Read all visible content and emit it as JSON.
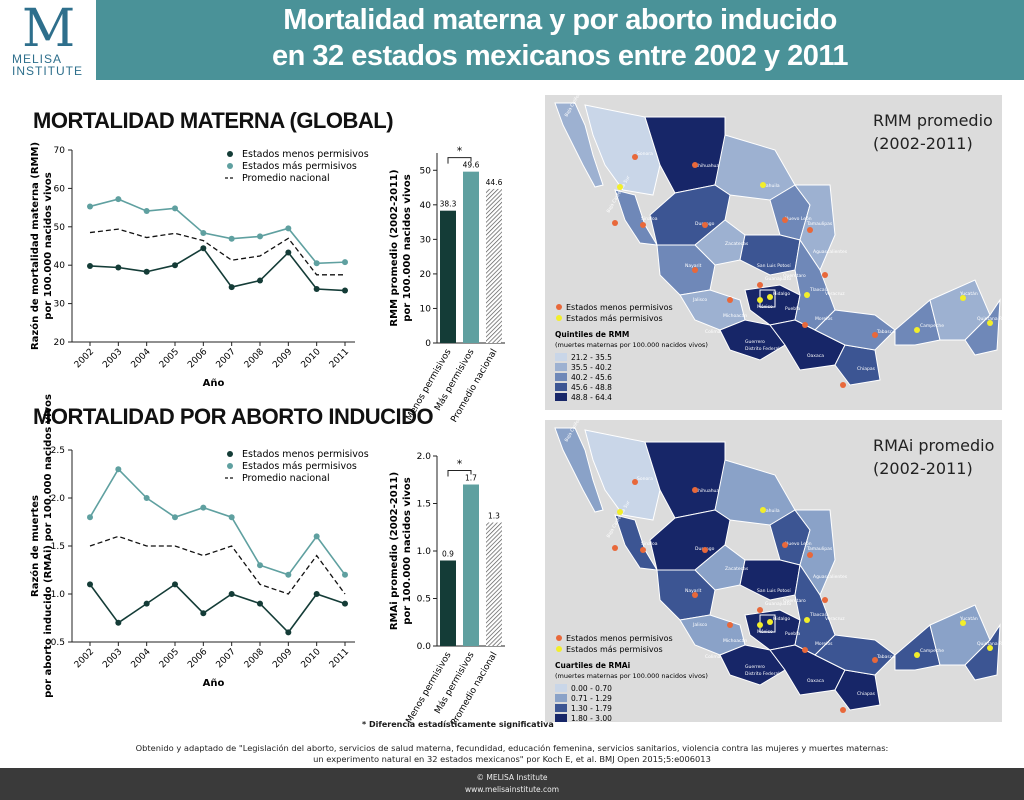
{
  "header": {
    "logo_letter": "M",
    "logo_line1": "MELISA",
    "logo_line2": "INSTITUTE",
    "title_line1": "Mortalidad materna y por aborto inducido",
    "title_line2": "en 32 estados mexicanos entre 2002 y 2011"
  },
  "sections": {
    "maternal_title": "MORTALIDAD MATERNA (GLOBAL)",
    "abortion_title": "MORTALIDAD POR ABORTO INDUCIDO"
  },
  "chart_data": [
    {
      "type": "line",
      "ylabel": "Razón de mortalidad materna (RMM) por 100.000 nacidos vivos",
      "xlabel": "Año",
      "x": [
        "2002",
        "2003",
        "2004",
        "2005",
        "2006",
        "2007",
        "2008",
        "2009",
        "2010",
        "2011"
      ],
      "ylim": [
        20,
        70
      ],
      "yticks": [
        20,
        30,
        40,
        50,
        60,
        70
      ],
      "legend_position": "top-right",
      "series": [
        {
          "name": "Estados menos permisivos",
          "values": [
            39.8,
            39.4,
            38.3,
            40.0,
            44.4,
            34.3,
            36.0,
            43.3,
            33.8,
            33.4
          ],
          "color": "#143c37",
          "style": "solid-markers"
        },
        {
          "name": "Estados más permisivos",
          "values": [
            55.3,
            57.2,
            54.1,
            54.8,
            48.4,
            46.9,
            47.5,
            49.6,
            40.5,
            40.8
          ],
          "color": "#5fa0a0",
          "style": "solid-markers"
        },
        {
          "name": "Promedio nacional",
          "values": [
            48.5,
            49.4,
            47.2,
            48.3,
            46.4,
            41.3,
            42.4,
            47.0,
            37.5,
            37.5
          ],
          "color": "#111111",
          "style": "dashed"
        }
      ]
    },
    {
      "type": "bar",
      "ylabel": "RMM promedio (2002-2011) por 100.000 nacidos vivos",
      "categories": [
        "Menos permisivos",
        "Más permisivos",
        "Promedio nacional"
      ],
      "values": [
        38.3,
        49.6,
        44.6
      ],
      "value_labels": [
        "38.3",
        "49.6",
        "44.6"
      ],
      "ylim": [
        0,
        55
      ],
      "yticks": [
        0,
        10,
        20,
        30,
        40,
        50
      ],
      "colors": [
        "#143c37",
        "#5fa0a0",
        "hatched"
      ],
      "significance": "*"
    },
    {
      "type": "line",
      "ylabel": "Razón de muertes por aborto inducido (RMAi) por 100.000 nacidos vivos",
      "xlabel": "Año",
      "x": [
        "2002",
        "2003",
        "2004",
        "2005",
        "2006",
        "2007",
        "2008",
        "2009",
        "2010",
        "2011"
      ],
      "ylim": [
        0.5,
        2.5
      ],
      "yticks": [
        "0.5",
        "1.0",
        "1.5",
        "2.0",
        "2.5"
      ],
      "legend_position": "top-right",
      "series": [
        {
          "name": "Estados menos permisivos",
          "values": [
            1.1,
            0.7,
            0.9,
            1.1,
            0.8,
            1.0,
            0.9,
            0.6,
            1.0,
            0.9
          ],
          "color": "#143c37",
          "style": "solid-markers"
        },
        {
          "name": "Estados más permisivos",
          "values": [
            1.8,
            2.3,
            2.0,
            1.8,
            1.9,
            1.8,
            1.3,
            1.2,
            1.6,
            1.2
          ],
          "color": "#5fa0a0",
          "style": "solid-markers"
        },
        {
          "name": "Promedio nacional",
          "values": [
            1.5,
            1.6,
            1.5,
            1.5,
            1.4,
            1.5,
            1.1,
            1.0,
            1.4,
            1.0
          ],
          "color": "#111111",
          "style": "dashed"
        }
      ]
    },
    {
      "type": "bar",
      "ylabel": "RMAi promedio (2002-2011) por 100.000 nacidos vivos",
      "categories": [
        "Menos permisivos",
        "Más permisivos",
        "Promedio nacional"
      ],
      "values": [
        0.9,
        1.7,
        1.3
      ],
      "value_labels": [
        "0.9",
        "1.7",
        "1.3"
      ],
      "ylim": [
        0,
        2.0
      ],
      "yticks": [
        "0.0",
        "0.5",
        "1.0",
        "1.5",
        "2.0"
      ],
      "colors": [
        "#143c37",
        "#5fa0a0",
        "hatched"
      ],
      "significance": "*"
    }
  ],
  "significance_note": "* Diferencia estadísticamente significativa",
  "maps": {
    "rmm": {
      "title_line1": "RMM promedio",
      "title_line2": "(2002-2011)",
      "legend_dots": [
        "Estados menos permisivos",
        "Estados más permisivos"
      ],
      "scale_title": "Quintiles de RMM",
      "scale_sub": "(muertes maternas por 100.000 nacidos vivos)",
      "classes": [
        {
          "label": "21.2 - 35.5",
          "color": "#c9d6e8"
        },
        {
          "label": "35.5 - 40.2",
          "color": "#9db1d1"
        },
        {
          "label": "40.2 - 45.6",
          "color": "#6f88b8"
        },
        {
          "label": "45.6 - 48.8",
          "color": "#3c5593"
        },
        {
          "label": "48.8 - 64.4",
          "color": "#172668"
        }
      ]
    },
    "rmai": {
      "title_line1": "RMAi promedio",
      "title_line2": "(2002-2011)",
      "legend_dots": [
        "Estados menos permisivos",
        "Estados más permisivos"
      ],
      "scale_title": "Cuartiles de RMAi",
      "scale_sub": "(muertes maternas por 100.000 nacidos vivos)",
      "classes": [
        {
          "label": "0.00 - 0.70",
          "color": "#c9d6e8"
        },
        {
          "label": "0.71 - 1.29",
          "color": "#8aa2c8"
        },
        {
          "label": "1.30 - 1.79",
          "color": "#3c5593"
        },
        {
          "label": "1.80 - 3.00",
          "color": "#172668"
        }
      ]
    },
    "dot_colors": {
      "less": "#e8683a",
      "more": "#f2ee2a"
    },
    "state_labels": [
      "Baja California",
      "Sonora",
      "Chihuahua",
      "Coahuila",
      "Baja California Sur",
      "Sinaloa",
      "Durango",
      "Nuevo León",
      "Tamaulipas",
      "Zacatecas",
      "Aguascalientes",
      "San Luis Potosí",
      "Nayarit",
      "Jalisco",
      "Guanajuato",
      "Querétaro",
      "Hidalgo",
      "Tlaxcala",
      "Colima",
      "Michoacán",
      "México",
      "Morelos",
      "Puebla",
      "Veracruz",
      "Guerrero",
      "Oaxaca",
      "Chiapas",
      "Tabasco",
      "Campeche",
      "Yucatán",
      "Quintana Roo",
      "Distrito Federal"
    ]
  },
  "footer": {
    "source_line1": "Obtenido y adaptado de \"Legislación del aborto, servicios de salud materna, fecundidad, educación femenina, servicios sanitarios, violencia contra las mujeres y muertes maternas:",
    "source_line2": "un experimento natural en 32 estados mexicanos\" por Koch E, et al. BMJ Open 2015;5:e006013",
    "copyright": "© MELISA Institute",
    "website": "www.melisainstitute.com"
  }
}
